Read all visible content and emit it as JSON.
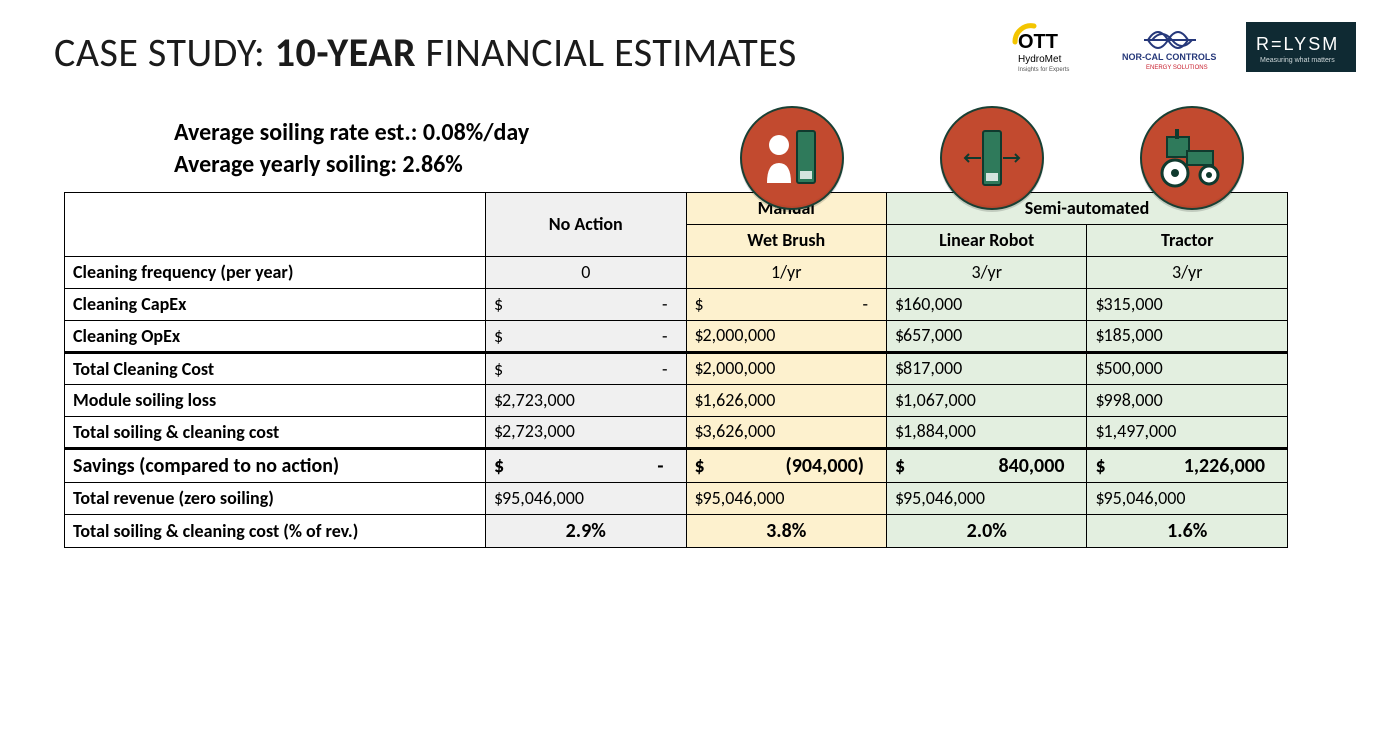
{
  "title": {
    "pre": "CASE STUDY: ",
    "bold": "10-YEAR",
    "post": " FINANCIAL ESTIMATES"
  },
  "sublines": {
    "l1": "Average soiling rate est.: 0.08%/day",
    "l2": "Average yearly soiling: 2.86%"
  },
  "logos": {
    "ott": {
      "name": "OTT",
      "sub": "HydroMet",
      "tag": "Insights for Experts",
      "accent": "#f3c500",
      "text": "#000000"
    },
    "norcal": {
      "name": "NOR-CAL CONTROLS",
      "accent": "#26387a",
      "accent2": "#c8202f"
    },
    "relysm": {
      "name": "R=LYSM",
      "tag": "Measuring what matters",
      "bg": "#0f2a33",
      "fg": "#ffffff"
    }
  },
  "icons": {
    "circle_bg": "#c24a2f",
    "panel_fill": "#2f7a5b",
    "stroke": "#0f3a2e"
  },
  "table": {
    "headers": {
      "blank": "",
      "no_action": "No Action",
      "manual": "Manual",
      "wet_brush": "Wet Brush",
      "semi_auto": "Semi-automated",
      "linear": "Linear Robot",
      "tractor": "Tractor"
    },
    "col_bg": {
      "no": "#f0f0f0",
      "wet": "#fdf1ce",
      "semi": "#e3efe0"
    },
    "rows": [
      {
        "label": "Cleaning frequency (per year)",
        "type": "center",
        "no": "0",
        "wet": "1/yr",
        "lin": "3/yr",
        "tra": "3/yr"
      },
      {
        "label": "Cleaning CapEx",
        "type": "money",
        "no": "-",
        "wet": "-",
        "lin": "160,000",
        "tra": "315,000"
      },
      {
        "label": "Cleaning OpEx",
        "type": "money",
        "no": "-",
        "wet": "2,000,000",
        "lin": "657,000",
        "tra": "185,000"
      },
      {
        "label": "Total Cleaning Cost",
        "type": "money",
        "thick_top": true,
        "no": "-",
        "wet": "2,000,000",
        "lin": "817,000",
        "tra": "500,000"
      },
      {
        "label": "Module soiling loss",
        "type": "money",
        "no": "2,723,000",
        "wet": "1,626,000",
        "lin": "1,067,000",
        "tra": "998,000"
      },
      {
        "label": "Total soiling & cleaning cost",
        "type": "money",
        "no": "2,723,000",
        "wet": "3,626,000",
        "lin": "1,884,000",
        "tra": "1,497,000"
      },
      {
        "label": "Savings (compared to no action)",
        "type": "savings",
        "thick_top": true,
        "no": "-",
        "wet": "(904,000)",
        "lin": "840,000",
        "tra": "1,226,000"
      },
      {
        "label": "Total revenue (zero soiling)",
        "type": "money",
        "no": "95,046,000",
        "wet": "95,046,000",
        "lin": "95,046,000",
        "tra": "95,046,000"
      },
      {
        "label": "Total soiling & cleaning cost (% of rev.)",
        "type": "pct",
        "no": "2.9%",
        "wet": "3.8%",
        "lin": "2.0%",
        "tra": "1.6%"
      }
    ],
    "currency": "$"
  }
}
